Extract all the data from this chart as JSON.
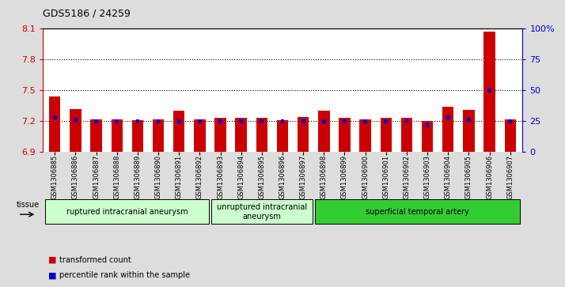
{
  "title": "GDS5186 / 24259",
  "samples": [
    "GSM1306885",
    "GSM1306886",
    "GSM1306887",
    "GSM1306888",
    "GSM1306889",
    "GSM1306890",
    "GSM1306891",
    "GSM1306892",
    "GSM1306893",
    "GSM1306894",
    "GSM1306895",
    "GSM1306896",
    "GSM1306897",
    "GSM1306898",
    "GSM1306899",
    "GSM1306900",
    "GSM1306901",
    "GSM1306902",
    "GSM1306903",
    "GSM1306904",
    "GSM1306905",
    "GSM1306906",
    "GSM1306907"
  ],
  "red_values": [
    7.44,
    7.32,
    7.22,
    7.22,
    7.21,
    7.22,
    7.3,
    7.22,
    7.23,
    7.23,
    7.23,
    7.21,
    7.24,
    7.3,
    7.23,
    7.22,
    7.23,
    7.23,
    7.2,
    7.34,
    7.31,
    8.07,
    7.22
  ],
  "blue_values": [
    28,
    26,
    25,
    25,
    25,
    25,
    25,
    25,
    25,
    25,
    25,
    25,
    25,
    25,
    25,
    25,
    25,
    25,
    22,
    28,
    26,
    50,
    25
  ],
  "ylim_left": [
    6.9,
    8.1
  ],
  "ylim_right": [
    0,
    100
  ],
  "yticks_left": [
    6.9,
    7.2,
    7.5,
    7.8,
    8.1
  ],
  "yticks_right": [
    0,
    25,
    50,
    75,
    100
  ],
  "bar_base": 6.9,
  "groups": [
    {
      "label": "ruptured intracranial aneurysm",
      "start": 0,
      "end": 8,
      "color": "#ccffcc"
    },
    {
      "label": "unruptured intracranial\naneurysm",
      "start": 8,
      "end": 13,
      "color": "#ccffcc"
    },
    {
      "label": "superficial temporal artery",
      "start": 13,
      "end": 23,
      "color": "#33cc33"
    }
  ],
  "legend_items": [
    {
      "label": "transformed count",
      "color": "#cc0000"
    },
    {
      "label": "percentile rank within the sample",
      "color": "#0000cc"
    }
  ],
  "tissue_label": "tissue",
  "background_color": "#dddddd",
  "plot_bg": "#ffffff",
  "left_axis_color": "#cc0000",
  "right_axis_color": "#0000cc",
  "bar_width": 0.55,
  "blue_bar_width": 0.18
}
